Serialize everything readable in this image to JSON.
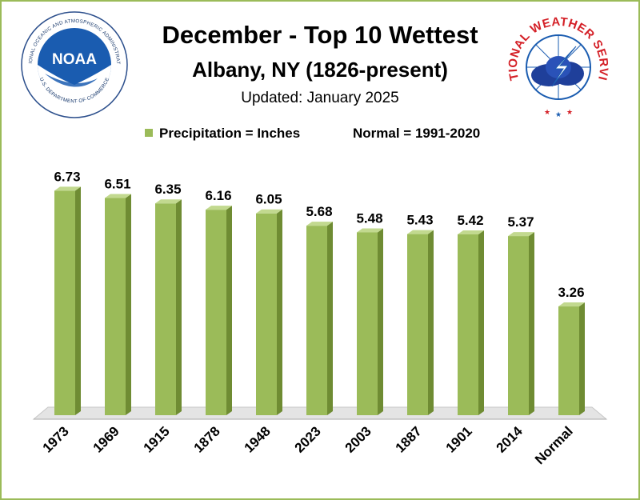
{
  "header": {
    "title": "December - Top 10 Wettest",
    "subtitle": "Albany, NY (1826-present)",
    "updated": "Updated: January 2025"
  },
  "legend": {
    "series_label": "Precipitation = Inches",
    "normal_label": "Normal = 1991-2020"
  },
  "logos": {
    "noaa_text": "NOAA",
    "noaa_ring": "NATIONAL OCEANIC AND ATMOSPHERIC ADMINISTRATION",
    "noaa_ring_bottom": "U.S. DEPARTMENT OF COMMERCE",
    "nws_ring": "NATIONAL WEATHER SERVICE"
  },
  "colors": {
    "bar_front": "#9bbb59",
    "bar_side": "#6f8c33",
    "bar_top": "#c2d98f",
    "border": "#9bbb59",
    "noaa_blue": "#1a5cb0",
    "nws_red": "#d42027"
  },
  "chart_data": {
    "type": "bar",
    "title": "December - Top 10 Wettest",
    "subtitle": "Albany, NY (1826-present)",
    "categories": [
      "1973",
      "1969",
      "1915",
      "1878",
      "1948",
      "2023",
      "2003",
      "1887",
      "1901",
      "2014",
      "Normal"
    ],
    "values": [
      6.73,
      6.51,
      6.35,
      6.16,
      6.05,
      5.68,
      5.48,
      5.43,
      5.42,
      5.37,
      3.26
    ],
    "ylim": [
      0,
      7
    ],
    "grid": false,
    "legend": "top",
    "data_labels": true
  }
}
